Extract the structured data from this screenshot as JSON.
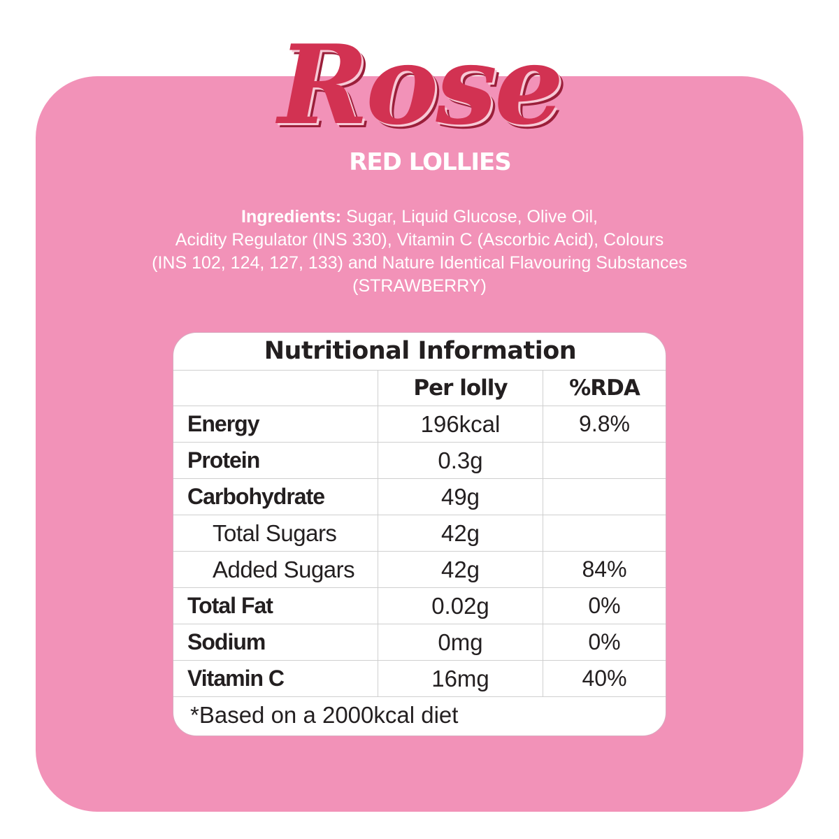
{
  "brand": {
    "name": "Rose",
    "subtitle": "RED LOLLIES"
  },
  "ingredients": {
    "lead": "Ingredients:",
    "line1": "Sugar, Liquid Glucose, Olive Oil,",
    "line2": "Acidity Regulator (INS 330), Vitamin C (Ascorbic Acid), Colours",
    "line3": "(INS 102, 124, 127, 133) and Nature Identical Flavouring Substances",
    "line4": "(STRAWBERRY)"
  },
  "nutrition": {
    "title": "Nutritional Information",
    "columns": [
      "",
      "Per lolly",
      "%RDA"
    ],
    "rows": [
      {
        "name": "Energy",
        "per": "196kcal",
        "rda": "9.8%"
      },
      {
        "name": "Protein",
        "per": "0.3g",
        "rda": ""
      },
      {
        "name": "Carbohydrate",
        "per": "49g",
        "rda": ""
      },
      {
        "name": "Total Sugars",
        "per": "42g",
        "rda": ""
      },
      {
        "name": "Added Sugars",
        "per": "42g",
        "rda": "84%"
      },
      {
        "name": "Total Fat",
        "per": "0.02g",
        "rda": "0%"
      },
      {
        "name": "Sodium",
        "per": "0mg",
        "rda": "0%"
      },
      {
        "name": "Vitamin C",
        "per": "16mg",
        "rda": "40%"
      }
    ],
    "footnote": "*Based on a 2000kcal diet"
  },
  "colors": {
    "panel": "#f292b8",
    "brand_red": "#d23252",
    "text_dark": "#231f20"
  }
}
